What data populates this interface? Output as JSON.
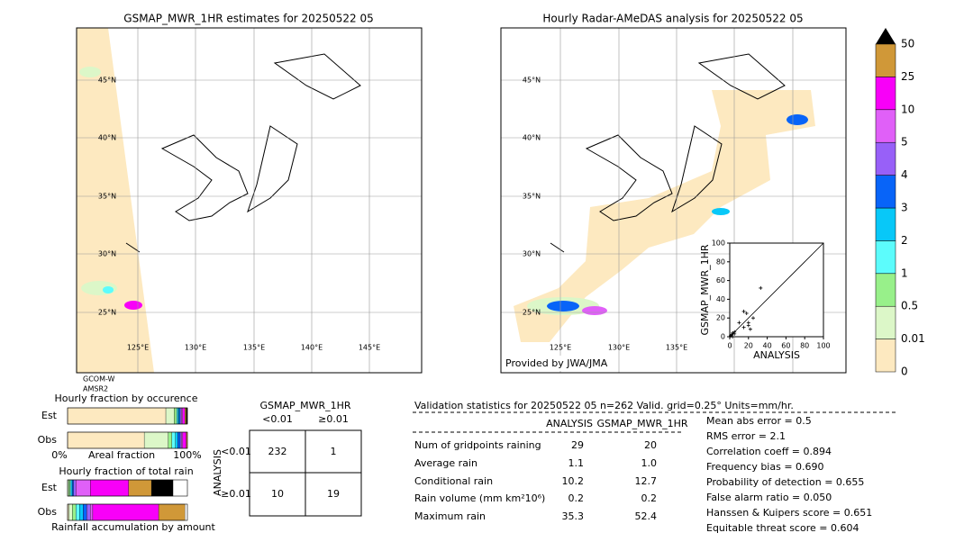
{
  "left_map": {
    "title": "GSMAP_MWR_1HR estimates for 20250522 05",
    "lat_labels": [
      "45°N",
      "40°N",
      "35°N",
      "30°N",
      "25°N"
    ],
    "lon_labels": [
      "125°E",
      "130°E",
      "135°E",
      "140°E",
      "145°E"
    ],
    "satellite": [
      "GCOM-W",
      "AMSR2"
    ]
  },
  "right_map": {
    "title": "Hourly Radar-AMeDAS analysis for 20250522 05",
    "lat_labels": [
      "45°N",
      "40°N",
      "35°N",
      "30°N",
      "25°N"
    ],
    "lon_labels": [
      "125°E",
      "130°E",
      "135°E"
    ],
    "credit": "Provided by JWA/JMA"
  },
  "colorbar": {
    "levels": [
      0,
      0.01,
      0.5,
      1,
      2,
      3,
      4,
      5,
      10,
      25,
      50
    ],
    "colors": [
      "#fde9c0",
      "#dcf7c8",
      "#98f08a",
      "#5cfcfc",
      "#08c8f8",
      "#0864f8",
      "#9860f8",
      "#e060f8",
      "#f800f8",
      "#d09838"
    ],
    "over_color": "#000000"
  },
  "chart_data": {
    "type": "scatter",
    "xlabel": "ANALYSIS",
    "ylabel": "GSMAP_MWR_1HR",
    "x": [
      0,
      1,
      2,
      3,
      3,
      5,
      5,
      10,
      15,
      15,
      18,
      20,
      20,
      22,
      25,
      33
    ],
    "values": [
      0,
      1,
      2,
      0,
      4,
      3,
      5,
      15,
      10,
      27,
      25,
      15,
      12,
      8,
      20,
      52
    ],
    "xlim": [
      0,
      100
    ],
    "ylim": [
      0,
      100
    ],
    "xticks": [
      0,
      20,
      40,
      60,
      80,
      100
    ],
    "yticks": [
      0,
      20,
      40,
      60,
      80,
      100
    ]
  },
  "fraction_occurrence": {
    "title": "Hourly fraction by occurence",
    "rows": [
      "Est",
      "Obs"
    ],
    "axis_labels": [
      "0%",
      "Areal fraction",
      "100%"
    ],
    "segments": [
      [
        82,
        7,
        2,
        1,
        1,
        1,
        1,
        1,
        2,
        1,
        1
      ],
      [
        64,
        20,
        3,
        3,
        2,
        2,
        1,
        1,
        3,
        1
      ]
    ]
  },
  "fraction_rain": {
    "title": "Hourly fraction of total rain",
    "rows": [
      "Est",
      "Obs"
    ],
    "footer": "Rainfall accumulation by amount",
    "segments": [
      [
        0,
        1,
        1,
        1,
        1,
        1,
        2,
        12,
        32,
        19,
        18
      ],
      [
        1,
        3,
        3,
        3,
        3,
        3,
        3,
        2,
        55,
        22
      ]
    ]
  },
  "contingency": {
    "title": "GSMAP_MWR_1HR",
    "col_headers": [
      "<0.01",
      "≥0.01"
    ],
    "row_title": "ANALYSIS",
    "row_headers": [
      "<0.01",
      "≥0.01"
    ],
    "cells": [
      [
        232,
        1
      ],
      [
        10,
        19
      ]
    ]
  },
  "validation": {
    "header": "Validation statistics for 20250522 05  n=262 Valid. grid=0.25° Units=mm/hr.",
    "columns": [
      "ANALYSIS",
      "GSMAP_MWR_1HR"
    ],
    "rows": [
      {
        "label": "Num of gridpoints raining",
        "values": [
          "29",
          "20"
        ]
      },
      {
        "label": "Average rain",
        "values": [
          "1.1",
          "1.0"
        ]
      },
      {
        "label": "Conditional rain",
        "values": [
          "10.2",
          "12.7"
        ]
      },
      {
        "label": "Rain volume (mm km²10⁶)",
        "values": [
          "0.2",
          "0.2"
        ]
      },
      {
        "label": "Maximum rain",
        "values": [
          "35.3",
          "52.4"
        ]
      }
    ],
    "scores": [
      "Mean abs error =    0.5",
      "RMS error =    2.1",
      "Correlation coeff =  0.894",
      "Frequency bias =  0.690",
      "Probability of detection =  0.655",
      "False alarm ratio =  0.050",
      "Hanssen & Kuipers score =  0.651",
      "Equitable threat score =  0.604"
    ]
  }
}
